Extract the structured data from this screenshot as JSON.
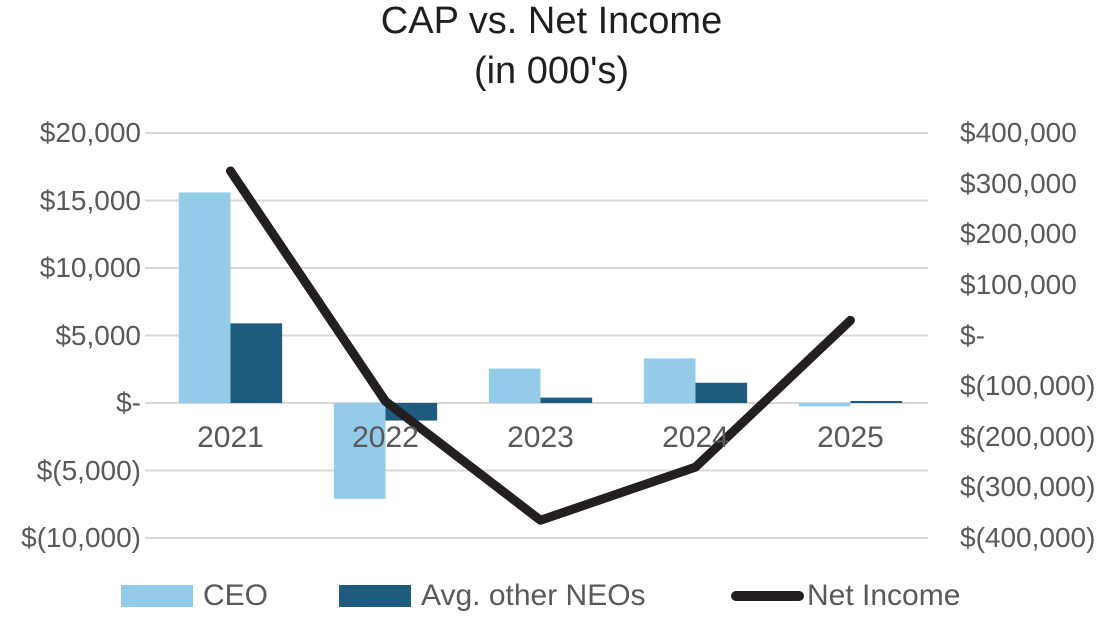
{
  "title": {
    "line1": "CAP vs. Net Income",
    "line2": "(in 000's)"
  },
  "colors": {
    "ceo": "#94CBE9",
    "neos": "#1E5B7C",
    "net_income": "#231F20",
    "gridline": "#D9D9D9",
    "axis_text": "#595959",
    "title_text": "#1F1F1F"
  },
  "chart_data": {
    "type": "combo bar+line, dual y-axes",
    "title": "CAP vs. Net Income (in 000's)",
    "categories": [
      "2021",
      "2022",
      "2023",
      "2024",
      "2025"
    ],
    "series": [
      {
        "name": "CEO",
        "type": "bar",
        "axis": "left",
        "color": "#94CBE9",
        "values": [
          15600,
          -7100,
          2550,
          3300,
          -250
        ]
      },
      {
        "name": "Avg. other NEOs",
        "type": "bar",
        "axis": "left",
        "color": "#1E5B7C",
        "values": [
          5900,
          -1300,
          400,
          1500,
          150
        ]
      },
      {
        "name": "Net Income",
        "type": "line",
        "axis": "right",
        "color": "#231F20",
        "values": [
          325000,
          -130000,
          -365000,
          -260000,
          30000
        ]
      }
    ],
    "left_axis": {
      "min": -10000,
      "max": 20000,
      "step": 5000,
      "tick_labels": [
        "$20,000",
        "$15,000",
        "$10,000",
        "$5,000",
        "$-",
        "$(5,000)",
        "$(10,000)"
      ]
    },
    "right_axis": {
      "min": -400000,
      "max": 400000,
      "step": 100000,
      "tick_labels": [
        "$400,000",
        "$300,000",
        "$200,000",
        "$100,000",
        "$-",
        "$(100,000)",
        "$(200,000)",
        "$(300,000)",
        "$(400,000)"
      ]
    },
    "grid": "horizontal gridlines at left-axis ticks",
    "legend": {
      "position": "bottom"
    }
  }
}
